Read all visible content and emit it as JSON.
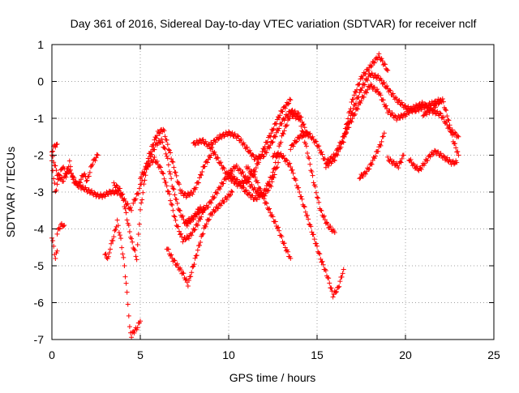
{
  "chart_data": {
    "type": "scatter",
    "title": "Day 361 of 2016, Sidereal Day-to-day VTEC variation (SDTVAR) for receiver nclf",
    "xlabel": "GPS time / hours",
    "ylabel": "SDTVAR / TECUs",
    "xlim": [
      0,
      25
    ],
    "ylim": [
      -7,
      1
    ],
    "xticks": [
      0,
      5,
      10,
      15,
      20,
      25
    ],
    "yticks": [
      -7,
      -6,
      -5,
      -4,
      -3,
      -2,
      -1,
      0,
      1
    ],
    "grid": true,
    "marker": "+",
    "color": "#ff0000",
    "series": [
      {
        "x": [
          0.0,
          0.3,
          0.6,
          1.0,
          1.4,
          1.8,
          2.2,
          2.6,
          2.9,
          3.3,
          3.8,
          4.2,
          4.5
        ],
        "y": [
          -2.0,
          -2.5,
          -2.7,
          -2.4,
          -2.8,
          -2.9,
          -3.0,
          -3.1,
          -3.1,
          -3.0,
          -3.0,
          -3.3,
          -3.5
        ]
      },
      {
        "x": [
          0.0,
          0.2,
          0.4,
          0.6,
          0.8,
          1.0,
          1.2,
          1.5,
          1.8,
          2.0,
          2.3,
          2.6
        ],
        "y": [
          -2.2,
          -3.0,
          -2.6,
          -2.3,
          -2.5,
          -2.2,
          -2.7,
          -2.8,
          -2.5,
          -2.7,
          -2.2,
          -2.0
        ]
      },
      {
        "x": [
          0.0,
          0.15,
          0.3
        ],
        "y": [
          -1.9,
          -1.75,
          -1.7
        ]
      },
      {
        "x": [
          0.0,
          0.1,
          0.2,
          0.3
        ],
        "y": [
          -4.2,
          -4.5,
          -4.8,
          -4.6
        ]
      },
      {
        "x": [
          0.3,
          0.5,
          0.7
        ],
        "y": [
          -4.1,
          -3.9,
          -3.9
        ]
      },
      {
        "x": [
          3.0,
          3.2,
          3.3,
          3.5,
          3.7,
          3.9,
          4.1,
          4.3,
          4.4,
          4.5,
          4.6,
          4.8,
          5.0
        ],
        "y": [
          -4.7,
          -4.8,
          -4.5,
          -4.2,
          -3.8,
          -4.3,
          -5.0,
          -6.0,
          -6.7,
          -6.9,
          -6.8,
          -6.7,
          -6.5
        ]
      },
      {
        "x": [
          3.5,
          3.8,
          4.0,
          4.2,
          4.5,
          4.8,
          5.0,
          5.3,
          5.6,
          5.9,
          6.2,
          6.5,
          6.8,
          7.2,
          7.6,
          8.0,
          8.4
        ],
        "y": [
          -2.8,
          -2.9,
          -3.1,
          -3.6,
          -4.3,
          -4.8,
          -3.5,
          -2.5,
          -2.0,
          -1.7,
          -1.6,
          -2.0,
          -2.8,
          -3.5,
          -3.9,
          -3.7,
          -3.4
        ]
      },
      {
        "x": [
          4.6,
          4.9,
          5.2,
          5.5,
          5.8,
          6.0,
          6.3,
          6.6,
          7.0,
          7.3,
          7.6,
          8.0,
          8.3,
          8.6,
          9.0
        ],
        "y": [
          -3.3,
          -3.0,
          -2.5,
          -2.0,
          -1.6,
          -1.4,
          -1.3,
          -1.8,
          -2.5,
          -3.0,
          -3.1,
          -3.0,
          -2.7,
          -2.3,
          -2.0
        ]
      },
      {
        "x": [
          5.0,
          5.4,
          5.8,
          6.2,
          6.6,
          7.0,
          7.4,
          7.8,
          8.2,
          8.6
        ],
        "y": [
          -2.6,
          -2.3,
          -2.1,
          -2.4,
          -3.0,
          -3.8,
          -4.3,
          -4.2,
          -3.9,
          -3.5
        ]
      },
      {
        "x": [
          6.5,
          6.8,
          7.1,
          7.4,
          7.7,
          8.0,
          8.3,
          8.6,
          9.0,
          9.4,
          9.8,
          10.2
        ],
        "y": [
          -4.5,
          -4.8,
          -5.0,
          -5.2,
          -5.5,
          -5.0,
          -4.5,
          -4.0,
          -3.6,
          -3.4,
          -3.2,
          -3.0
        ]
      },
      {
        "x": [
          7.6,
          8.0,
          8.4,
          8.8,
          9.2,
          9.6,
          10.0,
          10.4,
          10.8,
          11.2,
          11.6,
          12.0,
          12.4,
          12.8
        ],
        "y": [
          -3.8,
          -3.7,
          -3.5,
          -3.4,
          -3.1,
          -2.8,
          -2.5,
          -2.3,
          -2.5,
          -2.8,
          -3.0,
          -3.1,
          -2.8,
          -2.2
        ]
      },
      {
        "x": [
          8.0,
          8.5,
          9.0,
          9.5,
          10.0,
          10.5,
          11.0,
          11.5,
          12.0,
          12.5,
          13.0,
          13.5
        ],
        "y": [
          -1.7,
          -1.6,
          -1.8,
          -2.2,
          -2.6,
          -2.8,
          -2.7,
          -2.4,
          -1.8,
          -1.3,
          -0.8,
          -0.5
        ]
      },
      {
        "x": [
          9.0,
          9.5,
          10.0,
          10.5,
          11.0,
          11.5,
          12.0,
          12.5,
          13.0,
          13.5,
          14.0,
          14.5
        ],
        "y": [
          -1.7,
          -1.5,
          -1.4,
          -1.5,
          -1.8,
          -2.1,
          -2.0,
          -1.6,
          -1.1,
          -0.8,
          -0.9,
          -1.5
        ]
      },
      {
        "x": [
          10.0,
          10.5,
          11.0,
          11.5,
          12.0,
          12.5,
          13.0,
          13.5,
          14.0,
          14.4,
          14.8,
          15.2,
          15.6,
          16.0
        ],
        "y": [
          -2.5,
          -2.7,
          -3.0,
          -3.2,
          -3.0,
          -2.5,
          -1.5,
          -0.9,
          -1.0,
          -1.8,
          -2.7,
          -3.5,
          -3.9,
          -4.1
        ]
      },
      {
        "x": [
          11.0,
          11.5,
          12.0,
          12.4,
          12.8,
          13.2,
          13.5
        ],
        "y": [
          -2.3,
          -2.6,
          -3.2,
          -3.6,
          -4.0,
          -4.5,
          -4.8
        ]
      },
      {
        "x": [
          12.5,
          13.0,
          13.5,
          14.0,
          14.4,
          14.8,
          15.2,
          15.6,
          15.9,
          16.2,
          16.5
        ],
        "y": [
          -2.0,
          -2.0,
          -2.3,
          -3.0,
          -3.6,
          -4.2,
          -4.8,
          -5.3,
          -5.8,
          -5.6,
          -5.1
        ]
      },
      {
        "x": [
          13.5,
          14.0,
          14.5,
          15.0,
          15.5,
          16.0,
          16.5,
          17.0,
          17.5,
          18.0,
          18.5,
          19.0
        ],
        "y": [
          -1.8,
          -1.5,
          -1.4,
          -1.7,
          -2.2,
          -2.0,
          -1.5,
          -0.5,
          0.1,
          0.4,
          0.7,
          0.3
        ]
      },
      {
        "x": [
          15.5,
          16.0,
          16.5,
          17.0,
          17.5,
          18.0,
          18.5,
          19.0,
          19.5,
          20.0,
          20.5,
          21.0,
          21.5,
          22.0
        ],
        "y": [
          -2.3,
          -2.1,
          -1.6,
          -0.8,
          -0.2,
          0.2,
          0.1,
          -0.2,
          -0.5,
          -0.7,
          -0.8,
          -0.7,
          -0.6,
          -0.5
        ]
      },
      {
        "x": [
          16.5,
          17.0,
          17.5,
          18.0,
          18.5,
          19.0,
          19.5,
          20.0,
          20.5,
          21.0,
          21.5,
          22.0,
          22.5,
          23.0
        ],
        "y": [
          -1.5,
          -1.0,
          -0.5,
          -0.1,
          -0.3,
          -0.8,
          -1.0,
          -0.9,
          -0.7,
          -0.6,
          -0.8,
          -0.9,
          -1.3,
          -1.5
        ]
      },
      {
        "x": [
          17.4,
          17.7,
          18.0,
          18.3,
          18.6,
          18.8
        ],
        "y": [
          -2.6,
          -2.5,
          -2.3,
          -2.0,
          -1.7,
          -1.4
        ]
      },
      {
        "x": [
          19.0,
          19.3,
          19.6,
          19.9
        ],
        "y": [
          -2.1,
          -2.2,
          -2.3,
          -2.0
        ]
      },
      {
        "x": [
          20.2,
          20.5,
          20.8,
          21.1,
          21.4,
          21.7,
          22.0,
          22.3,
          22.6,
          22.9
        ],
        "y": [
          -2.1,
          -2.3,
          -2.4,
          -2.2,
          -2.0,
          -1.9,
          -2.0,
          -2.1,
          -2.2,
          -2.2
        ]
      },
      {
        "x": [
          21.0,
          21.4,
          21.8,
          22.1,
          22.4,
          22.7,
          23.0
        ],
        "y": [
          -0.9,
          -0.8,
          -0.6,
          -0.5,
          -1.0,
          -1.6,
          -2.0
        ]
      }
    ]
  }
}
